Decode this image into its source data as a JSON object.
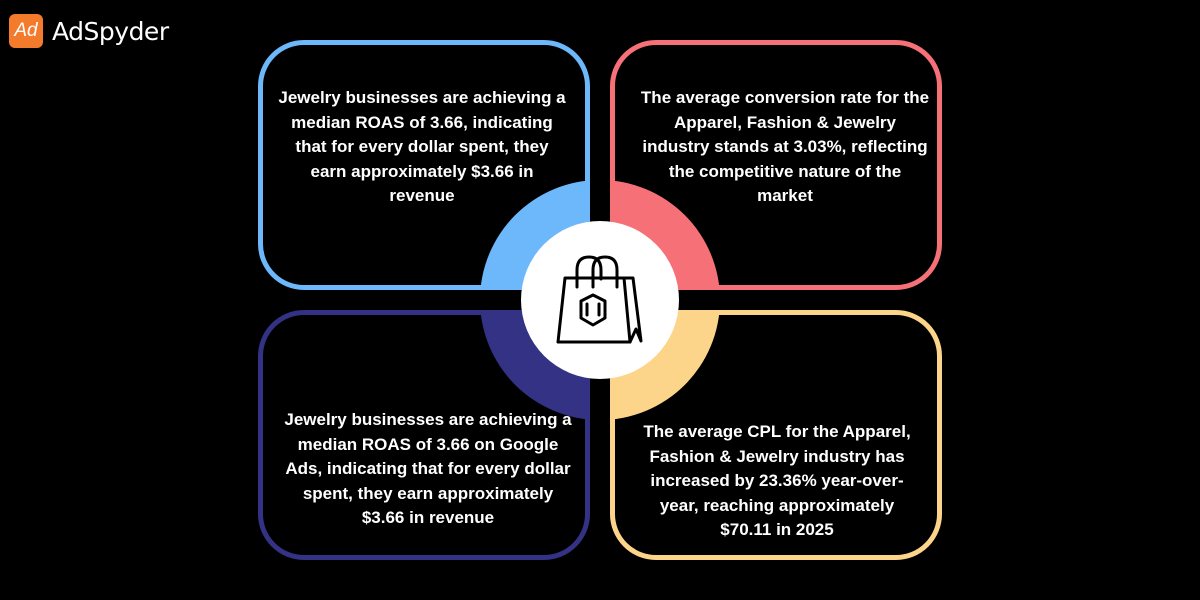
{
  "brand": {
    "name": "AdSpyder",
    "mark": "Ad"
  },
  "center_icon": "shopping-bag-with-gem-icon",
  "colors": {
    "blue": "#6cb8fb",
    "red": "#f57177",
    "navy": "#333284",
    "yellow": "#fdd58a",
    "logo": "#f47b2b"
  },
  "cards": [
    {
      "text": "Jewelry businesses are achieving a median ROAS of 3.66, indicating that for every dollar spent, they earn approximately $3.66 in revenue"
    },
    {
      "text": "The average conversion rate for the Apparel, Fashion & Jewelry industry stands at 3.03%, reflecting the competitive nature of the market"
    },
    {
      "text": "Jewelry businesses are achieving a median ROAS of 3.66 on Google Ads, indicating that for every dollar spent, they earn approximately $3.66 in revenue"
    },
    {
      "text": "The average CPL for the Apparel, Fashion & Jewelry industry has increased by 23.36% year-over-year, reaching approximately $70.11 in 2025"
    }
  ]
}
